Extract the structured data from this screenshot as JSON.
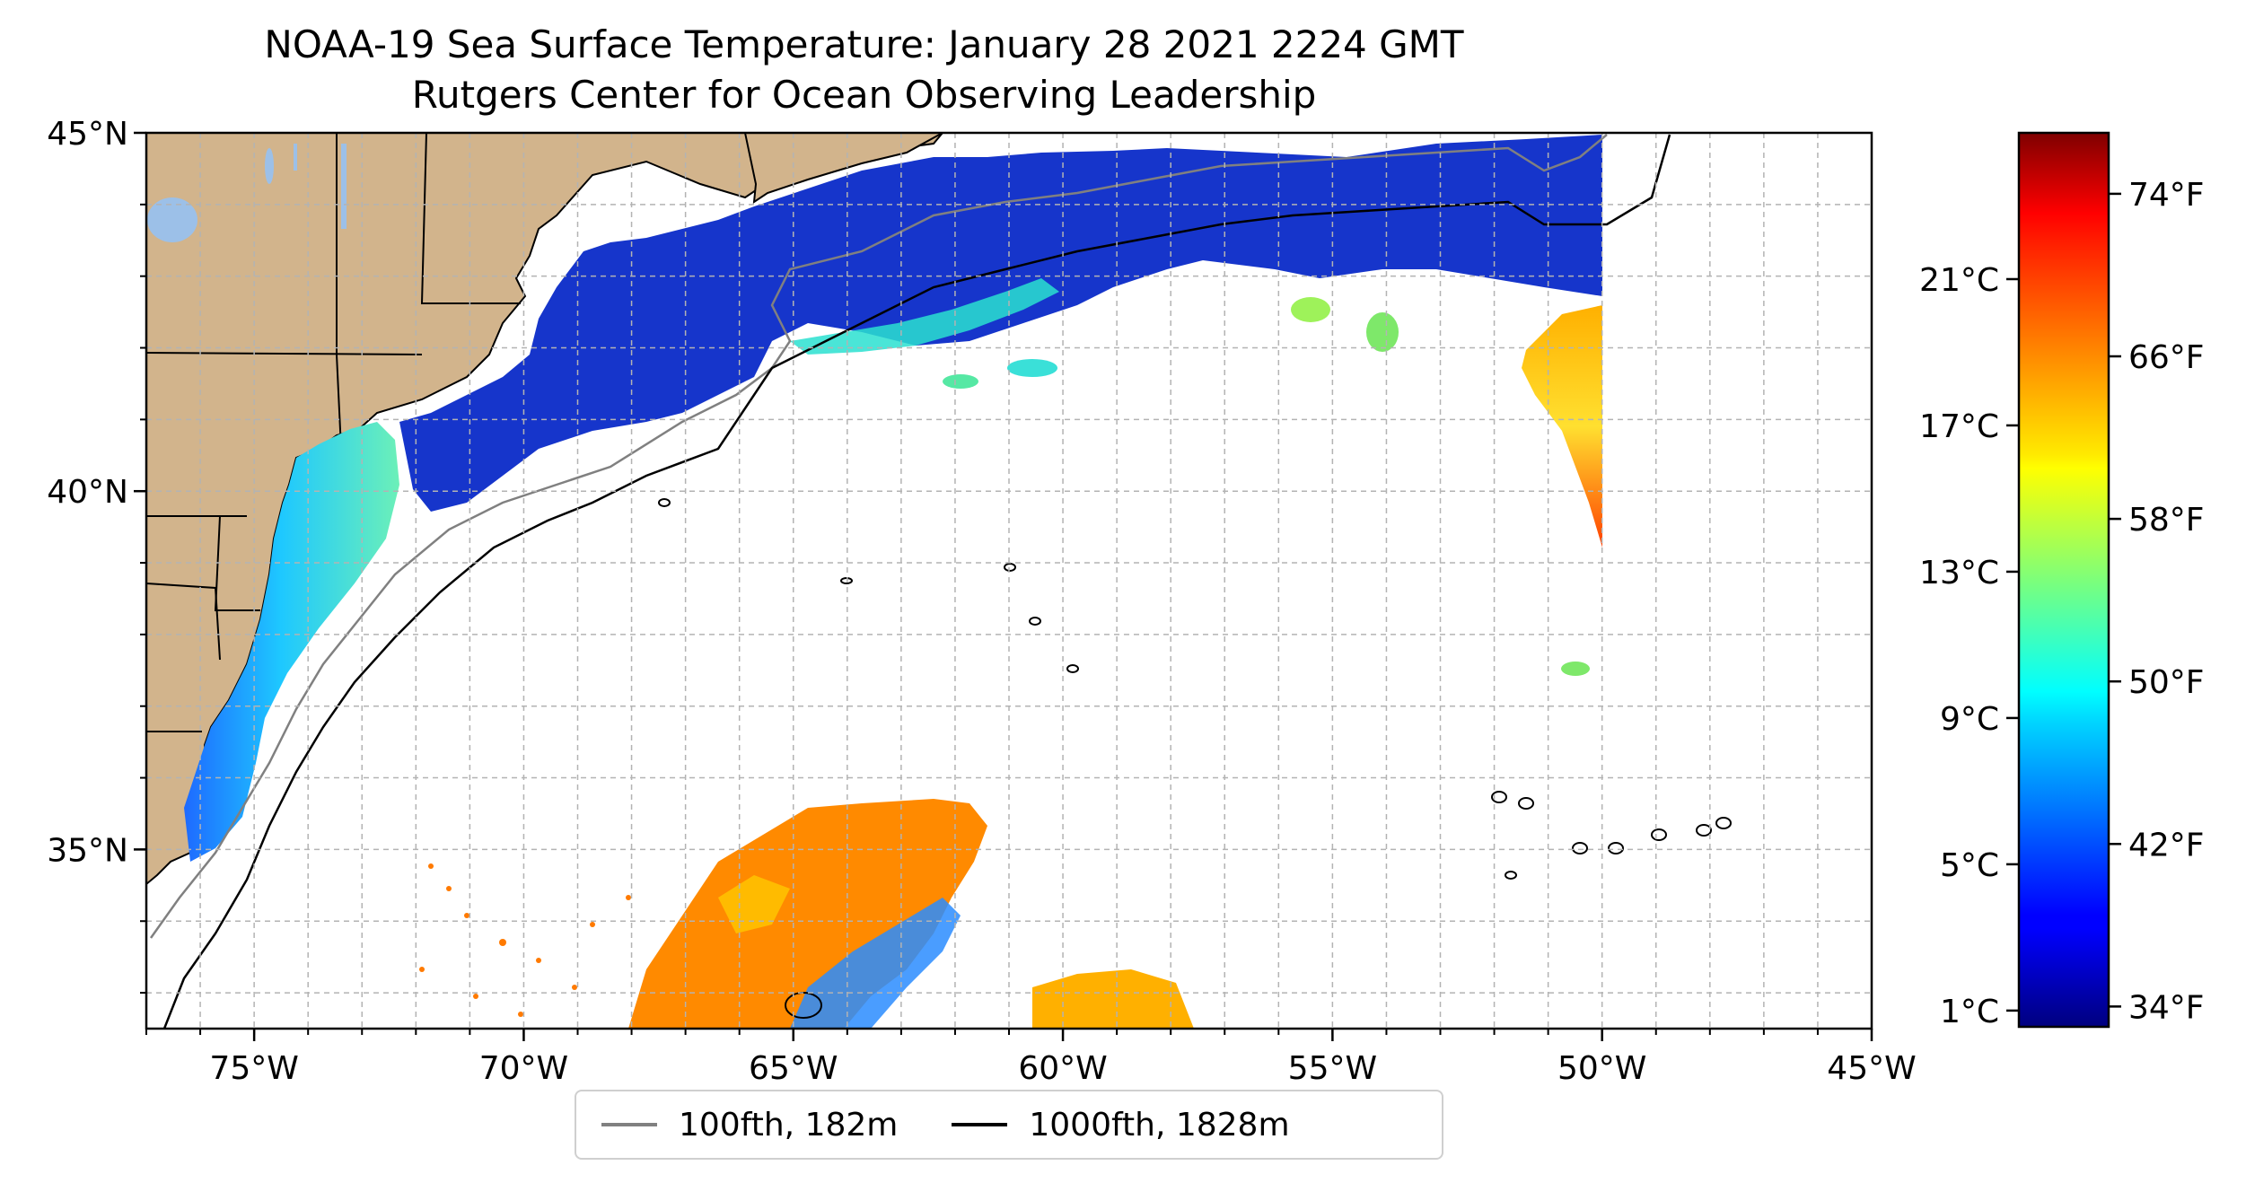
{
  "title": {
    "line1": "NOAA-19 Sea Surface Temperature: January 28 2021 2224 GMT",
    "line2": "Rutgers Center for Ocean Observing Leadership"
  },
  "map": {
    "lon_range": [
      -77,
      -45
    ],
    "lat_range": [
      32.5,
      45
    ],
    "lon_ticks": [
      {
        "value": -75,
        "label": "75°W"
      },
      {
        "value": -70,
        "label": "70°W"
      },
      {
        "value": -65,
        "label": "65°W"
      },
      {
        "value": -60,
        "label": "60°W"
      },
      {
        "value": -55,
        "label": "55°W"
      },
      {
        "value": -50,
        "label": "50°W"
      },
      {
        "value": -45,
        "label": "45°W"
      }
    ],
    "lat_ticks": [
      {
        "value": 45,
        "label": "45°N"
      },
      {
        "value": 40,
        "label": "40°N"
      },
      {
        "value": 35,
        "label": "35°N"
      }
    ],
    "gridline_step_deg": 1,
    "land_color": "#d2b48c",
    "lake_color": "#9cc0e8",
    "grid_color": "#b3b3b3"
  },
  "legend": {
    "items": [
      {
        "label": "100fth, 182m",
        "color": "#808080"
      },
      {
        "label": "1000fth, 1828m",
        "color": "#000000"
      }
    ]
  },
  "colorbar": {
    "colormap": "jet",
    "range_f": [
      33,
      77
    ],
    "celsius_ticks": [
      {
        "value": 1,
        "label": "1°C"
      },
      {
        "value": 5,
        "label": "5°C"
      },
      {
        "value": 9,
        "label": "9°C"
      },
      {
        "value": 13,
        "label": "13°C"
      },
      {
        "value": 17,
        "label": "17°C"
      },
      {
        "value": 21,
        "label": "21°C"
      }
    ],
    "fahrenheit_ticks": [
      {
        "value": 34,
        "label": "34°F"
      },
      {
        "value": 42,
        "label": "42°F"
      },
      {
        "value": 50,
        "label": "50°F"
      },
      {
        "value": 58,
        "label": "58°F"
      },
      {
        "value": 66,
        "label": "66°F"
      },
      {
        "value": 74,
        "label": "74°F"
      }
    ]
  }
}
